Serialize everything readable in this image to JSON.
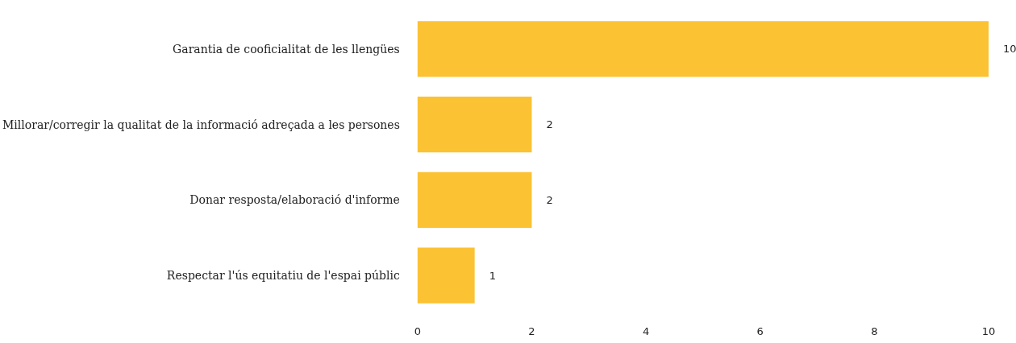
{
  "chart_data": {
    "type": "bar",
    "orientation": "horizontal",
    "categories": [
      "Garantia de cooficialitat de les llengües",
      "Millorar/corregir la qualitat de la informació adreçada a les persones",
      "Donar resposta/elaboració d'informe",
      "Respectar l'ús equitatiu de l'espai públic"
    ],
    "values": [
      10,
      2,
      2,
      1
    ],
    "color": "#fbc233",
    "xlim": [
      0,
      10
    ],
    "xticks": [
      0,
      2,
      4,
      6,
      8,
      10
    ],
    "grid": false,
    "data_labels": true
  }
}
